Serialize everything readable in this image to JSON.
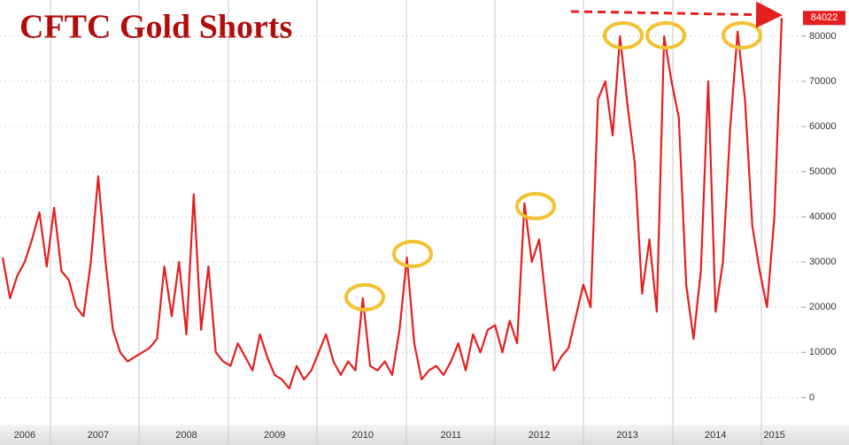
{
  "chart_data": {
    "type": "line",
    "title": "CFTC Gold Shorts",
    "categories": [
      null,
      null,
      null,
      "2006",
      null,
      null,
      null,
      null,
      null,
      null,
      null,
      null,
      null,
      "2007",
      null,
      null,
      null,
      null,
      null,
      null,
      null,
      null,
      null,
      null,
      null,
      "2008",
      null,
      null,
      null,
      null,
      null,
      null,
      null,
      null,
      null,
      null,
      null,
      "2009",
      null,
      null,
      null,
      null,
      null,
      null,
      null,
      null,
      null,
      null,
      null,
      "2010",
      null,
      null,
      null,
      null,
      null,
      null,
      null,
      null,
      null,
      null,
      null,
      "2011",
      null,
      null,
      null,
      null,
      null,
      null,
      null,
      null,
      null,
      null,
      null,
      "2012",
      null,
      null,
      null,
      null,
      null,
      null,
      null,
      null,
      null,
      null,
      null,
      "2013",
      null,
      null,
      null,
      null,
      null,
      null,
      null,
      null,
      null,
      null,
      null,
      "2014",
      null,
      null,
      null,
      null,
      null,
      null,
      null,
      "2015",
      null
    ],
    "values": [
      31000,
      22000,
      27000,
      30000,
      35000,
      41000,
      29000,
      42000,
      28000,
      26000,
      20000,
      18000,
      30000,
      49000,
      30000,
      15000,
      10000,
      8000,
      9000,
      10000,
      11000,
      13000,
      29000,
      18000,
      30000,
      14000,
      45000,
      15000,
      29000,
      10000,
      8000,
      7000,
      12000,
      9000,
      6000,
      14000,
      9000,
      5000,
      4000,
      2000,
      7000,
      4000,
      6000,
      10000,
      14000,
      8000,
      5000,
      8000,
      6000,
      22000,
      7000,
      6000,
      8000,
      5000,
      15000,
      31000,
      12000,
      4000,
      6000,
      7000,
      5000,
      8000,
      12000,
      6000,
      14000,
      10000,
      15000,
      16000,
      10000,
      17000,
      12000,
      43000,
      30000,
      35000,
      20000,
      6000,
      9000,
      11000,
      18000,
      25000,
      20000,
      66000,
      70000,
      58000,
      80000,
      65000,
      52000,
      23000,
      35000,
      19000,
      80000,
      70000,
      62000,
      25000,
      13000,
      28000,
      70000,
      19000,
      30000,
      60000,
      81000,
      66000,
      38000,
      28000,
      20000,
      40000,
      84022
    ],
    "color": "#e41f1f",
    "ylim": [
      -6000,
      88000
    ],
    "yticks": [
      0,
      10000,
      20000,
      30000,
      40000,
      50000,
      60000,
      70000,
      80000
    ],
    "grid": true
  }
}
